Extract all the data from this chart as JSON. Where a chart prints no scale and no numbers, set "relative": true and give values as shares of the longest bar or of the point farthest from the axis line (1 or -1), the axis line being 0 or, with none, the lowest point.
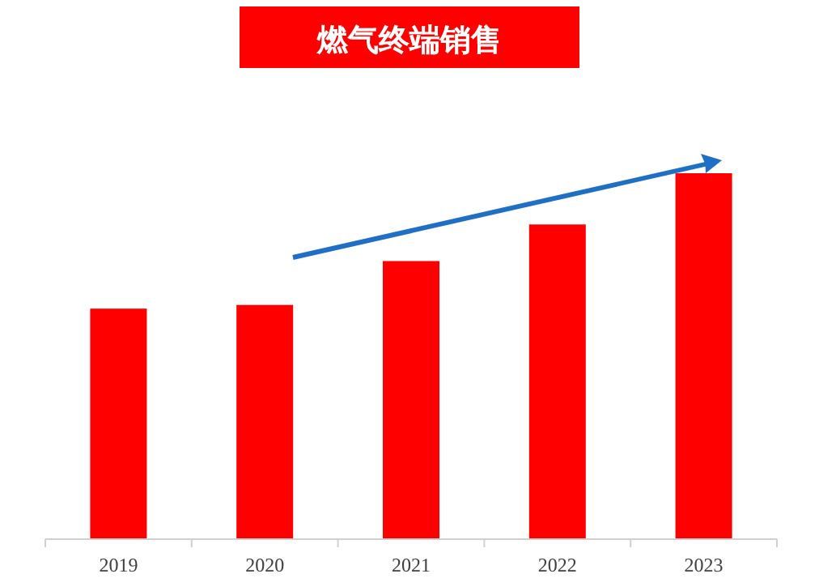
{
  "chart_data": {
    "type": "bar",
    "title": "燃气终端销售",
    "relative": true,
    "categories": [
      "2019",
      "2020",
      "2021",
      "2022",
      "2023"
    ],
    "series": [
      {
        "color": "#ff0000",
        "values": [
          0.63,
          0.64,
          0.76,
          0.86,
          1
        ]
      }
    ]
  }
}
